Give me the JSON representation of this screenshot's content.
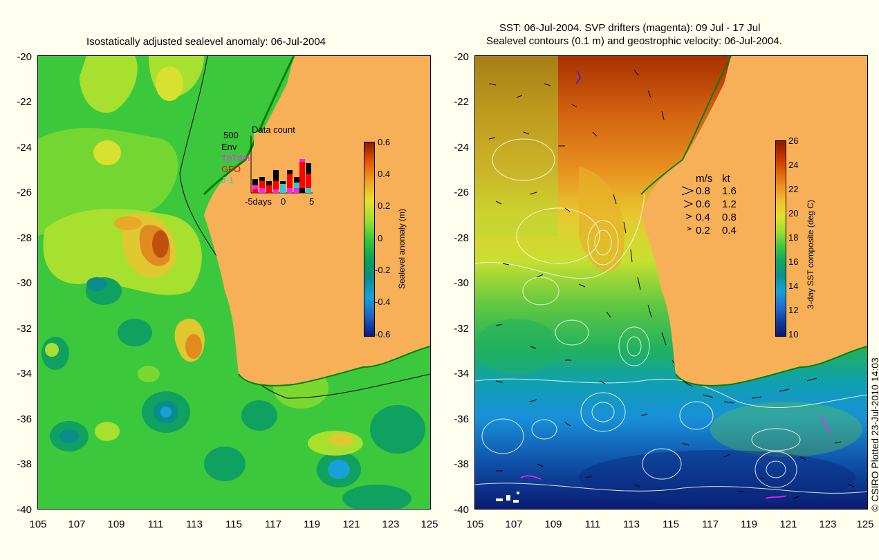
{
  "left_panel": {
    "title": "Isostatically adjusted sealevel anomaly: 06-Jul-2004",
    "y_ticks": [
      "-20",
      "-22",
      "-24",
      "-26",
      "-28",
      "-30",
      "-32",
      "-34",
      "-36",
      "-38",
      "-40"
    ],
    "x_ticks": [
      "105",
      "107",
      "109",
      "111",
      "113",
      "115",
      "117",
      "119",
      "121",
      "123",
      "125"
    ],
    "colorbar": {
      "label": "Sealevel anomaly (m)",
      "ticks": [
        "0.6",
        "0.4",
        "0.2",
        "0",
        "-0.2",
        "-0.4",
        "-0.6"
      ],
      "colors": [
        "#8b1a00",
        "#e05a00",
        "#f0a020",
        "#e8e030",
        "#a0e030",
        "#38c838",
        "#10a050",
        "#0a8c8c",
        "#1aa0d8",
        "#2060c0",
        "#0a1a80"
      ]
    },
    "inset": {
      "title": "Data count",
      "max_label": "500",
      "legend": [
        {
          "name": "Env",
          "color": "#000000"
        },
        {
          "name": "TpTdm",
          "color": "#ff20ff"
        },
        {
          "name": "GFO",
          "color": "#ff0000"
        },
        {
          "name": "J-1",
          "color": "#20d0d0"
        }
      ],
      "x_axis": {
        "left": "-5days",
        "mid": "0",
        "right": "5"
      }
    }
  },
  "right_panel": {
    "title_line1": "SST: 06-Jul-2004. SVP drifters (magenta): 09 Jul - 17 Jul",
    "title_line2": "Sealevel contours (0.1 m) and geostrophic velocity: 06-Jul-2004.",
    "y_ticks": [
      "-20",
      "-22",
      "-24",
      "-26",
      "-28",
      "-30",
      "-32",
      "-34",
      "-36",
      "-38",
      "-40"
    ],
    "x_ticks": [
      "105",
      "107",
      "109",
      "111",
      "113",
      "115",
      "117",
      "119",
      "121",
      "123",
      "125"
    ],
    "velocity_legend": {
      "header_ms": "m/s",
      "header_kt": "kt",
      "rows": [
        {
          "ms": "0.8",
          "kt": "1.6"
        },
        {
          "ms": "0.6",
          "kt": "1.2"
        },
        {
          "ms": "0.4",
          "kt": "0.8"
        },
        {
          "ms": "0.2",
          "kt": "0.4"
        }
      ]
    },
    "colorbar": {
      "label": "3-day SST composite (deg C)",
      "ticks": [
        "26",
        "24",
        "22",
        "20",
        "18",
        "16",
        "14",
        "12",
        "10"
      ],
      "colors": [
        "#8b1a00",
        "#c03000",
        "#e06000",
        "#f09020",
        "#f0c030",
        "#e0e030",
        "#a0e030",
        "#40c840",
        "#10a860",
        "#0a9090",
        "#18a0d8",
        "#2070d0",
        "#1040a0",
        "#0a1a70"
      ]
    }
  },
  "credit": "© CSIRO Plotted 23-Jul-2010 14:03",
  "colors": {
    "background": "#fffff0",
    "land": "#f8b058",
    "ocean_green": "#3cc83c"
  }
}
